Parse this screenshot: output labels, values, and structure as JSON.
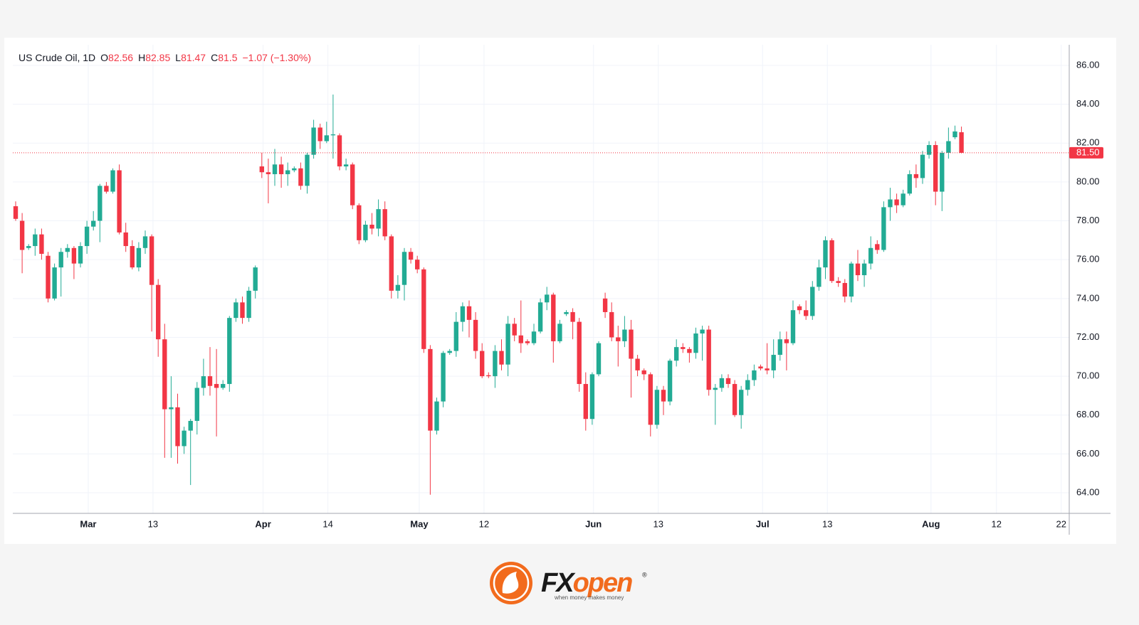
{
  "chart_data": {
    "type": "candlestick",
    "instrument": "US Crude Oil, 1D",
    "legend": [
      {
        "label": "O",
        "value": 82.56
      },
      {
        "label": "H",
        "value": 82.85
      },
      {
        "label": "L",
        "value": 81.47
      },
      {
        "label": "C",
        "value": 81.5
      }
    ],
    "change": "−1.07 (−1.30%)",
    "open": [
      78.75,
      78.0,
      76.6,
      76.7,
      77.3,
      76.2,
      74.0,
      75.6,
      76.4,
      76.6,
      75.8,
      76.7,
      77.7,
      78.0,
      79.8,
      79.5,
      80.6,
      77.4,
      76.7,
      75.6,
      76.6,
      77.2,
      74.7,
      71.9,
      68.3,
      68.4,
      66.4,
      67.2,
      67.7,
      69.4,
      70.0,
      69.6,
      69.4,
      69.6,
      73.0,
      73.8,
      73.0,
      74.4,
      80.8,
      80.5,
      80.4,
      80.9,
      80.4,
      80.6,
      80.7,
      79.8,
      81.4,
      82.8,
      82.1,
      82.4,
      82.4,
      80.8,
      80.9,
      78.8,
      77.0,
      77.8,
      77.6,
      78.6,
      77.2,
      74.4,
      74.7,
      76.4,
      76.0,
      75.5,
      71.4,
      67.2,
      68.7,
      71.2,
      71.3,
      72.8,
      73.6,
      72.9,
      71.3,
      70.05,
      70.0,
      71.3,
      70.6,
      72.7,
      72.1,
      71.8,
      71.7,
      72.3,
      73.8,
      74.2,
      71.8,
      73.2,
      73.3,
      72.8,
      69.6,
      67.8,
      70.1,
      74.0,
      73.3,
      72.0,
      71.8,
      72.4,
      70.9,
      70.3,
      70.1,
      67.5,
      69.3,
      68.7,
      70.8,
      71.5,
      71.4,
      71.2,
      72.2,
      72.4,
      69.3,
      69.4,
      69.9,
      69.6,
      68.0,
      69.3,
      69.8,
      70.5,
      70.4,
      70.3,
      71.1,
      71.9,
      71.7,
      73.6,
      73.4,
      73.1,
      74.6,
      75.6,
      77.0,
      74.9,
      74.8,
      74.1,
      75.8,
      75.2,
      75.8,
      76.8,
      76.5,
      78.7,
      79.1,
      78.8,
      79.4,
      80.4,
      80.2,
      81.4,
      81.9,
      79.5,
      81.5,
      82.3,
      82.56
    ],
    "high": [
      79.0,
      78.4,
      76.8,
      77.6,
      77.6,
      76.4,
      75.8,
      76.6,
      76.8,
      76.7,
      76.9,
      78.0,
      78.5,
      79.9,
      80.0,
      80.7,
      80.9,
      77.9,
      77.0,
      76.9,
      77.5,
      77.3,
      75.0,
      72.7,
      70.0,
      69.1,
      67.4,
      67.8,
      69.7,
      70.9,
      71.5,
      71.4,
      69.8,
      73.1,
      74.0,
      74.1,
      74.6,
      75.7,
      81.5,
      81.2,
      81.7,
      81.3,
      81.0,
      80.8,
      81.0,
      81.5,
      83.2,
      83.0,
      83.1,
      84.5,
      82.5,
      81.2,
      81.0,
      78.9,
      78.0,
      78.4,
      79.1,
      79.0,
      77.3,
      75.2,
      76.6,
      76.6,
      76.2,
      75.6,
      71.6,
      68.9,
      71.3,
      71.4,
      73.3,
      73.8,
      73.9,
      73.3,
      71.7,
      70.2,
      71.6,
      71.9,
      73.1,
      73.0,
      73.9,
      71.9,
      72.7,
      74.0,
      74.6,
      74.3,
      72.9,
      73.4,
      73.5,
      73.0,
      70.2,
      70.2,
      71.8,
      74.3,
      73.8,
      72.6,
      73.1,
      72.9,
      71.1,
      70.4,
      70.2,
      69.5,
      69.5,
      70.9,
      71.9,
      71.7,
      71.5,
      72.5,
      72.6,
      72.6,
      69.6,
      70.1,
      70.1,
      69.8,
      69.5,
      70.1,
      70.6,
      70.6,
      71.7,
      71.9,
      72.3,
      72.3,
      73.9,
      73.7,
      73.9,
      74.9,
      76.0,
      77.2,
      77.1,
      75.1,
      75.0,
      75.9,
      76.5,
      76.0,
      77.2,
      77.0,
      79.0,
      79.7,
      79.4,
      79.6,
      80.6,
      80.9,
      81.6,
      82.1,
      82.1,
      81.6,
      82.8,
      82.9,
      82.85
    ],
    "low": [
      78.0,
      75.3,
      76.5,
      76.2,
      76.0,
      73.8,
      73.9,
      74.1,
      76.1,
      75.0,
      75.6,
      76.3,
      77.5,
      76.9,
      79.4,
      79.4,
      77.3,
      76.4,
      75.5,
      75.4,
      76.3,
      72.3,
      71.0,
      65.8,
      65.8,
      65.5,
      66.0,
      64.4,
      67.0,
      69.0,
      69.0,
      66.9,
      69.3,
      69.2,
      72.8,
      72.7,
      72.8,
      74.0,
      80.2,
      78.9,
      79.8,
      79.7,
      79.8,
      80.5,
      79.6,
      79.4,
      81.2,
      81.7,
      82.0,
      81.2,
      80.6,
      80.6,
      78.6,
      76.8,
      76.9,
      77.3,
      77.2,
      77.0,
      74.0,
      74.0,
      73.9,
      75.8,
      75.3,
      71.2,
      63.9,
      67.0,
      68.4,
      71.1,
      71.0,
      72.3,
      72.0,
      70.9,
      69.9,
      69.9,
      69.4,
      70.3,
      70.0,
      71.8,
      71.2,
      71.6,
      71.6,
      72.2,
      73.4,
      70.7,
      71.7,
      73.1,
      71.9,
      69.2,
      67.2,
      67.5,
      70.0,
      73.0,
      71.8,
      70.5,
      71.5,
      68.9,
      70.0,
      69.8,
      66.9,
      67.3,
      68.0,
      68.5,
      70.5,
      71.2,
      70.7,
      70.9,
      70.8,
      69.0,
      67.5,
      69.2,
      69.4,
      67.9,
      67.3,
      69.0,
      69.5,
      70.3,
      70.1,
      69.9,
      70.8,
      70.3,
      71.6,
      73.2,
      72.9,
      72.9,
      74.4,
      75.0,
      74.8,
      74.6,
      73.8,
      73.8,
      74.9,
      74.6,
      75.5,
      76.3,
      76.4,
      78.0,
      78.4,
      78.7,
      79.3,
      79.7,
      79.9,
      81.2,
      78.8,
      78.5,
      81.2,
      82.2,
      81.47
    ],
    "close": [
      78.1,
      76.5,
      76.7,
      77.3,
      76.3,
      74.0,
      75.6,
      76.4,
      76.6,
      75.8,
      76.7,
      77.7,
      78.0,
      79.8,
      79.5,
      80.6,
      77.4,
      76.7,
      75.6,
      76.6,
      77.2,
      74.7,
      71.9,
      68.3,
      68.4,
      66.4,
      67.2,
      67.7,
      69.4,
      70.0,
      69.5,
      69.4,
      69.6,
      73.0,
      73.8,
      73.0,
      74.4,
      75.6,
      80.5,
      80.4,
      80.9,
      80.4,
      80.6,
      80.7,
      79.8,
      81.4,
      82.8,
      82.1,
      82.4,
      82.45,
      80.8,
      80.9,
      78.8,
      77.0,
      77.8,
      77.6,
      78.6,
      77.2,
      74.4,
      74.7,
      76.4,
      76.0,
      75.5,
      71.4,
      67.2,
      68.7,
      71.2,
      71.3,
      72.8,
      73.6,
      72.9,
      71.3,
      70.0,
      70.0,
      71.3,
      70.6,
      72.7,
      72.1,
      71.7,
      71.7,
      72.3,
      73.8,
      74.2,
      71.8,
      72.7,
      73.3,
      72.8,
      69.6,
      67.8,
      70.1,
      71.7,
      73.3,
      72.0,
      71.8,
      72.4,
      70.9,
      70.3,
      70.1,
      67.5,
      69.3,
      68.7,
      70.8,
      71.5,
      71.4,
      71.2,
      72.2,
      72.4,
      69.3,
      69.4,
      69.9,
      69.6,
      68.0,
      69.3,
      69.8,
      70.3,
      70.4,
      70.3,
      71.1,
      71.9,
      71.7,
      73.4,
      73.4,
      73.1,
      74.6,
      75.6,
      77.0,
      74.9,
      74.8,
      74.1,
      75.8,
      75.2,
      75.8,
      76.6,
      76.5,
      78.7,
      79.1,
      78.8,
      79.4,
      80.4,
      80.2,
      81.4,
      81.9,
      79.5,
      81.5,
      82.1,
      82.6,
      81.5
    ],
    "up_color": "#22ab94",
    "down_color": "#f23645",
    "last_price": {
      "value": 81.5,
      "label": "81.50"
    },
    "ylim": [
      62.94,
      87.06
    ],
    "yticks": [
      {
        "value": 64,
        "label": "64.00"
      },
      {
        "value": 66,
        "label": "66.00"
      },
      {
        "value": 68,
        "label": "68.00"
      },
      {
        "value": 70,
        "label": "70.00"
      },
      {
        "value": 72,
        "label": "72.00"
      },
      {
        "value": 74,
        "label": "74.00"
      },
      {
        "value": 76,
        "label": "76.00"
      },
      {
        "value": 78,
        "label": "78.00"
      },
      {
        "value": 80,
        "label": "80.00"
      },
      {
        "value": 82,
        "label": "82.00"
      },
      {
        "value": 84,
        "label": "84.00"
      },
      {
        "value": 86,
        "label": "86.00"
      }
    ],
    "xlim": [
      -0.44,
      162.64
    ],
    "xticks": [
      {
        "value": 11.2,
        "label": "Mar"
      },
      {
        "value": 21.2,
        "label": "13"
      },
      {
        "value": 38.2,
        "label": "Apr"
      },
      {
        "value": 48.2,
        "label": "14"
      },
      {
        "value": 62.3,
        "label": "May"
      },
      {
        "value": 72.3,
        "label": "12"
      },
      {
        "value": 89.2,
        "label": "Jun"
      },
      {
        "value": 99.2,
        "label": "13"
      },
      {
        "value": 115.3,
        "label": "Jul"
      },
      {
        "value": 125.3,
        "label": "13"
      },
      {
        "value": 141.3,
        "label": "Aug"
      },
      {
        "value": 151.4,
        "label": "12"
      },
      {
        "value": 161.4,
        "label": "22"
      }
    ],
    "grid": true
  },
  "logo": {
    "brand_a": "FX",
    "brand_b": "open",
    "mark": "®",
    "tagline": "when money makes money"
  }
}
